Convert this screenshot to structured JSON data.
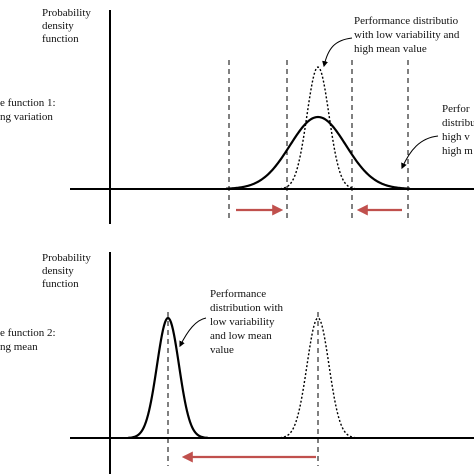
{
  "panel1": {
    "ylabel": [
      "Probability",
      "density",
      "function"
    ],
    "side_label": [
      "e function 1:",
      "ng variation"
    ],
    "annotation_narrow": [
      "Performance distributio",
      "with low variability and",
      "high mean value"
    ],
    "annotation_wide": [
      "Perfor",
      "distribu",
      "high v",
      "high m"
    ]
  },
  "panel2": {
    "ylabel": [
      "Probability",
      "density",
      "function"
    ],
    "side_label": [
      "e function 2:",
      "ng mean"
    ],
    "annotation": [
      "Performance",
      "distribution with",
      "low variability",
      "and low mean",
      "value"
    ]
  },
  "colors": {
    "arrow": "#c0504d",
    "ink": "#000000"
  },
  "icons": {
    "arrow_right": "arrow-right-icon",
    "arrow_left": "arrow-left-icon"
  }
}
